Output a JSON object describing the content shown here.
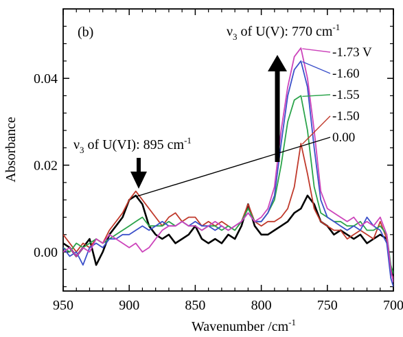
{
  "chart_data": {
    "type": "line",
    "panel_label": "(b)",
    "xlabel": "Wavenumber /cm",
    "xlabel_sup": "-1",
    "ylabel": "Absorbance",
    "xlim": [
      950,
      700
    ],
    "ylim": [
      -0.009,
      0.056
    ],
    "xticks": [
      950,
      900,
      850,
      800,
      750,
      700
    ],
    "xtick_labels": [
      "950",
      "900",
      "850",
      "800",
      "750",
      "700"
    ],
    "yticks": [
      0.0,
      0.02,
      0.04
    ],
    "ytick_labels": [
      "0.00",
      "0.02",
      "0.04"
    ],
    "annotations": [
      {
        "nu": "ν",
        "sub": "3",
        "text": " of U(VI): 895 cm",
        "sup": "-1",
        "arrow": "down"
      },
      {
        "nu": "ν",
        "sub": "3",
        "text": " of U(V): 770 cm",
        "sup": "-1",
        "arrow": "up"
      }
    ],
    "series": [
      {
        "name": "0.00",
        "color": "#000000",
        "points": [
          [
            950,
            0.002
          ],
          [
            945,
            0.001
          ],
          [
            940,
            -0.001
          ],
          [
            935,
            0.001
          ],
          [
            930,
            0.003
          ],
          [
            925,
            -0.003
          ],
          [
            920,
            0.0
          ],
          [
            915,
            0.004
          ],
          [
            910,
            0.006
          ],
          [
            905,
            0.008
          ],
          [
            900,
            0.012
          ],
          [
            895,
            0.013
          ],
          [
            890,
            0.011
          ],
          [
            885,
            0.006
          ],
          [
            880,
            0.004
          ],
          [
            875,
            0.003
          ],
          [
            870,
            0.004
          ],
          [
            865,
            0.002
          ],
          [
            860,
            0.003
          ],
          [
            855,
            0.004
          ],
          [
            850,
            0.006
          ],
          [
            845,
            0.003
          ],
          [
            840,
            0.002
          ],
          [
            835,
            0.003
          ],
          [
            830,
            0.002
          ],
          [
            825,
            0.004
          ],
          [
            820,
            0.003
          ],
          [
            815,
            0.006
          ],
          [
            810,
            0.011
          ],
          [
            805,
            0.006
          ],
          [
            800,
            0.004
          ],
          [
            795,
            0.004
          ],
          [
            790,
            0.005
          ],
          [
            785,
            0.006
          ],
          [
            780,
            0.007
          ],
          [
            775,
            0.009
          ],
          [
            770,
            0.01
          ],
          [
            765,
            0.013
          ],
          [
            760,
            0.011
          ],
          [
            755,
            0.007
          ],
          [
            750,
            0.006
          ],
          [
            745,
            0.004
          ],
          [
            740,
            0.005
          ],
          [
            735,
            0.004
          ],
          [
            730,
            0.003
          ],
          [
            725,
            0.004
          ],
          [
            720,
            0.002
          ],
          [
            715,
            0.003
          ],
          [
            710,
            0.004
          ],
          [
            705,
            0.003
          ],
          [
            702,
            -0.004
          ],
          [
            700,
            -0.006
          ]
        ]
      },
      {
        "name": "-1.50",
        "color": "#c0392b",
        "points": [
          [
            950,
            0.004
          ],
          [
            945,
            0.002
          ],
          [
            940,
            0.0
          ],
          [
            935,
            0.002
          ],
          [
            930,
            0.001
          ],
          [
            925,
            0.003
          ],
          [
            920,
            0.002
          ],
          [
            915,
            0.005
          ],
          [
            910,
            0.007
          ],
          [
            905,
            0.009
          ],
          [
            900,
            0.012
          ],
          [
            895,
            0.014
          ],
          [
            890,
            0.012
          ],
          [
            885,
            0.01
          ],
          [
            880,
            0.008
          ],
          [
            875,
            0.006
          ],
          [
            870,
            0.008
          ],
          [
            865,
            0.009
          ],
          [
            860,
            0.007
          ],
          [
            855,
            0.008
          ],
          [
            850,
            0.008
          ],
          [
            845,
            0.006
          ],
          [
            840,
            0.007
          ],
          [
            835,
            0.006
          ],
          [
            830,
            0.007
          ],
          [
            825,
            0.006
          ],
          [
            820,
            0.005
          ],
          [
            815,
            0.007
          ],
          [
            810,
            0.011
          ],
          [
            805,
            0.007
          ],
          [
            800,
            0.006
          ],
          [
            795,
            0.007
          ],
          [
            790,
            0.007
          ],
          [
            785,
            0.008
          ],
          [
            780,
            0.01
          ],
          [
            775,
            0.015
          ],
          [
            770,
            0.025
          ],
          [
            765,
            0.018
          ],
          [
            760,
            0.01
          ],
          [
            755,
            0.007
          ],
          [
            750,
            0.006
          ],
          [
            745,
            0.005
          ],
          [
            740,
            0.005
          ],
          [
            735,
            0.003
          ],
          [
            730,
            0.004
          ],
          [
            725,
            0.005
          ],
          [
            720,
            0.004
          ],
          [
            715,
            0.003
          ],
          [
            710,
            0.007
          ],
          [
            705,
            0.003
          ],
          [
            702,
            -0.005
          ],
          [
            700,
            -0.006
          ]
        ]
      },
      {
        "name": "-1.55",
        "color": "#2aa34a",
        "points": [
          [
            950,
            0.001
          ],
          [
            945,
            0.0
          ],
          [
            940,
            0.002
          ],
          [
            935,
            0.001
          ],
          [
            930,
            0.002
          ],
          [
            925,
            0.003
          ],
          [
            920,
            0.002
          ],
          [
            915,
            0.003
          ],
          [
            910,
            0.004
          ],
          [
            905,
            0.005
          ],
          [
            900,
            0.006
          ],
          [
            895,
            0.007
          ],
          [
            890,
            0.008
          ],
          [
            885,
            0.006
          ],
          [
            880,
            0.006
          ],
          [
            875,
            0.006
          ],
          [
            870,
            0.007
          ],
          [
            865,
            0.006
          ],
          [
            860,
            0.007
          ],
          [
            855,
            0.006
          ],
          [
            850,
            0.006
          ],
          [
            845,
            0.005
          ],
          [
            840,
            0.006
          ],
          [
            835,
            0.006
          ],
          [
            830,
            0.005
          ],
          [
            825,
            0.006
          ],
          [
            820,
            0.005
          ],
          [
            815,
            0.007
          ],
          [
            810,
            0.01
          ],
          [
            805,
            0.007
          ],
          [
            800,
            0.007
          ],
          [
            795,
            0.009
          ],
          [
            790,
            0.012
          ],
          [
            785,
            0.02
          ],
          [
            780,
            0.03
          ],
          [
            775,
            0.035
          ],
          [
            770,
            0.036
          ],
          [
            765,
            0.028
          ],
          [
            760,
            0.015
          ],
          [
            755,
            0.009
          ],
          [
            750,
            0.008
          ],
          [
            745,
            0.007
          ],
          [
            740,
            0.007
          ],
          [
            735,
            0.006
          ],
          [
            730,
            0.006
          ],
          [
            725,
            0.007
          ],
          [
            720,
            0.005
          ],
          [
            715,
            0.005
          ],
          [
            710,
            0.006
          ],
          [
            705,
            0.004
          ],
          [
            702,
            -0.003
          ],
          [
            700,
            -0.005
          ]
        ]
      },
      {
        "name": "-1.60",
        "color": "#3a4fc9",
        "points": [
          [
            950,
            0.001
          ],
          [
            945,
            -0.001
          ],
          [
            940,
            0.0
          ],
          [
            935,
            -0.003
          ],
          [
            930,
            0.001
          ],
          [
            925,
            0.002
          ],
          [
            920,
            0.001
          ],
          [
            915,
            0.003
          ],
          [
            910,
            0.003
          ],
          [
            905,
            0.004
          ],
          [
            900,
            0.004
          ],
          [
            895,
            0.005
          ],
          [
            890,
            0.006
          ],
          [
            885,
            0.005
          ],
          [
            880,
            0.006
          ],
          [
            875,
            0.007
          ],
          [
            870,
            0.006
          ],
          [
            865,
            0.006
          ],
          [
            860,
            0.007
          ],
          [
            855,
            0.006
          ],
          [
            850,
            0.007
          ],
          [
            845,
            0.006
          ],
          [
            840,
            0.006
          ],
          [
            835,
            0.005
          ],
          [
            830,
            0.006
          ],
          [
            825,
            0.005
          ],
          [
            820,
            0.006
          ],
          [
            815,
            0.007
          ],
          [
            810,
            0.009
          ],
          [
            805,
            0.007
          ],
          [
            800,
            0.007
          ],
          [
            795,
            0.009
          ],
          [
            790,
            0.013
          ],
          [
            785,
            0.025
          ],
          [
            780,
            0.036
          ],
          [
            775,
            0.042
          ],
          [
            770,
            0.044
          ],
          [
            765,
            0.038
          ],
          [
            760,
            0.024
          ],
          [
            755,
            0.012
          ],
          [
            750,
            0.008
          ],
          [
            745,
            0.007
          ],
          [
            740,
            0.006
          ],
          [
            735,
            0.005
          ],
          [
            730,
            0.006
          ],
          [
            725,
            0.005
          ],
          [
            720,
            0.008
          ],
          [
            715,
            0.006
          ],
          [
            710,
            0.005
          ],
          [
            705,
            0.002
          ],
          [
            702,
            -0.006
          ],
          [
            700,
            -0.008
          ]
        ]
      },
      {
        "name": "-1.73 V",
        "color": "#cc44bb",
        "points": [
          [
            950,
            0.0
          ],
          [
            945,
            0.001
          ],
          [
            940,
            -0.001
          ],
          [
            935,
            0.001
          ],
          [
            930,
            0.0
          ],
          [
            925,
            0.003
          ],
          [
            920,
            0.002
          ],
          [
            915,
            0.004
          ],
          [
            910,
            0.003
          ],
          [
            905,
            0.002
          ],
          [
            900,
            0.001
          ],
          [
            895,
            0.002
          ],
          [
            890,
            0.0
          ],
          [
            885,
            0.001
          ],
          [
            880,
            0.003
          ],
          [
            875,
            0.005
          ],
          [
            870,
            0.006
          ],
          [
            865,
            0.006
          ],
          [
            860,
            0.007
          ],
          [
            855,
            0.006
          ],
          [
            850,
            0.006
          ],
          [
            845,
            0.005
          ],
          [
            840,
            0.006
          ],
          [
            835,
            0.007
          ],
          [
            830,
            0.006
          ],
          [
            825,
            0.005
          ],
          [
            820,
            0.006
          ],
          [
            815,
            0.007
          ],
          [
            810,
            0.009
          ],
          [
            805,
            0.007
          ],
          [
            800,
            0.008
          ],
          [
            795,
            0.01
          ],
          [
            790,
            0.015
          ],
          [
            785,
            0.028
          ],
          [
            780,
            0.038
          ],
          [
            775,
            0.045
          ],
          [
            770,
            0.047
          ],
          [
            765,
            0.04
          ],
          [
            760,
            0.028
          ],
          [
            755,
            0.014
          ],
          [
            750,
            0.01
          ],
          [
            745,
            0.009
          ],
          [
            740,
            0.008
          ],
          [
            735,
            0.007
          ],
          [
            730,
            0.008
          ],
          [
            725,
            0.006
          ],
          [
            720,
            0.007
          ],
          [
            715,
            0.006
          ],
          [
            710,
            0.008
          ],
          [
            705,
            0.004
          ],
          [
            702,
            -0.004
          ],
          [
            700,
            -0.007
          ]
        ]
      }
    ],
    "legend": [
      {
        "series": "-1.73 V",
        "label": "-1.73 V"
      },
      {
        "series": "-1.60",
        "label": "-1.60"
      },
      {
        "series": "-1.55",
        "label": "-1.55"
      },
      {
        "series": "-1.50",
        "label": "-1.50"
      },
      {
        "series": "0.00",
        "label": "0.00"
      }
    ]
  }
}
